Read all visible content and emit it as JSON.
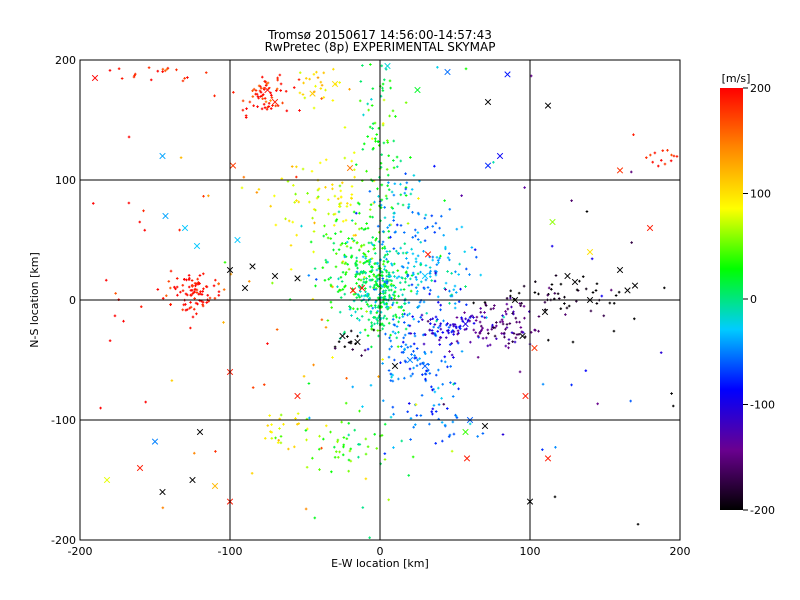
{
  "chart_data": {
    "type": "scatter",
    "title": "Tromsø 20150617 14:56:00-14:57:43",
    "subtitle": "RwPretec (8p) EXPERIMENTAL SKYMAP",
    "xlabel": "E-W location [km]",
    "ylabel": "N-S location [km]",
    "xlim": [
      -200,
      200
    ],
    "ylim": [
      -200,
      200
    ],
    "xticks": [
      "-200",
      "-100",
      "0",
      "100",
      "200"
    ],
    "yticks": [
      "-200",
      "-100",
      "0",
      "100",
      "200"
    ],
    "grid": true,
    "colorbar": {
      "unit": "[m/s]",
      "range": [
        -200,
        200
      ],
      "ticks": [
        "200",
        "100",
        "0",
        "-100",
        "-200"
      ],
      "colormap": [
        "#000000",
        "#6a0090",
        "#0000ff",
        "#00ccff",
        "#00ff00",
        "#ffff00",
        "#ff8800",
        "#ff0000"
      ]
    },
    "clusters": [
      {
        "cx": -125,
        "cy": 5,
        "sx": 9,
        "sy": 9,
        "n": 90,
        "v": 195
      },
      {
        "cx": -75,
        "cy": 170,
        "sx": 9,
        "sy": 10,
        "n": 65,
        "v": 190
      },
      {
        "cx": -150,
        "cy": 190,
        "sx": 14,
        "sy": 5,
        "n": 20,
        "v": 195
      },
      {
        "cx": 190,
        "cy": 120,
        "sx": 7,
        "sy": 6,
        "n": 18,
        "v": 195
      },
      {
        "cx": -40,
        "cy": 175,
        "sx": 10,
        "sy": 10,
        "n": 25,
        "v": 105
      },
      {
        "cx": -35,
        "cy": 85,
        "sx": 18,
        "sy": 20,
        "n": 80,
        "v": 85
      },
      {
        "cx": -15,
        "cy": 30,
        "sx": 14,
        "sy": 20,
        "n": 140,
        "v": 30
      },
      {
        "cx": 0,
        "cy": 130,
        "sx": 8,
        "sy": 40,
        "n": 90,
        "v": 20
      },
      {
        "cx": 0,
        "cy": 5,
        "sx": 10,
        "sy": 18,
        "n": 260,
        "v": 5
      },
      {
        "cx": 25,
        "cy": 25,
        "sx": 22,
        "sy": 15,
        "n": 130,
        "v": -30
      },
      {
        "cx": 15,
        "cy": 75,
        "sx": 20,
        "sy": 16,
        "n": 60,
        "v": -45
      },
      {
        "cx": 25,
        "cy": -40,
        "sx": 15,
        "sy": 30,
        "n": 140,
        "v": -55
      },
      {
        "cx": 45,
        "cy": -20,
        "sx": 12,
        "sy": 10,
        "n": 70,
        "v": -105
      },
      {
        "cx": 80,
        "cy": -20,
        "sx": 14,
        "sy": 12,
        "n": 90,
        "v": -145
      },
      {
        "cx": 125,
        "cy": 2,
        "sx": 22,
        "sy": 8,
        "n": 55,
        "v": -195
      },
      {
        "cx": -20,
        "cy": -35,
        "sx": 6,
        "sy": 6,
        "n": 15,
        "v": -200
      },
      {
        "cx": -65,
        "cy": -110,
        "sx": 10,
        "sy": 8,
        "n": 25,
        "v": 90
      },
      {
        "cx": -20,
        "cy": -120,
        "sx": 18,
        "sy": 12,
        "n": 45,
        "v": 40
      },
      {
        "cx": 30,
        "cy": -100,
        "sx": 16,
        "sy": 10,
        "n": 25,
        "v": -60
      },
      {
        "cx": 0,
        "cy": 0,
        "sx": 120,
        "sy": 110,
        "n": 160,
        "v": null
      }
    ],
    "crosses": [
      {
        "x": -190,
        "y": 185,
        "v": 200
      },
      {
        "x": -75,
        "y": 175,
        "v": 195
      },
      {
        "x": -70,
        "y": 165,
        "v": 190
      },
      {
        "x": -45,
        "y": 172,
        "v": 110
      },
      {
        "x": -30,
        "y": 180,
        "v": 100
      },
      {
        "x": 5,
        "y": 195,
        "v": -20
      },
      {
        "x": 25,
        "y": 175,
        "v": 20
      },
      {
        "x": 45,
        "y": 190,
        "v": -55
      },
      {
        "x": 72,
        "y": 165,
        "v": -200
      },
      {
        "x": 112,
        "y": 162,
        "v": -200
      },
      {
        "x": 85,
        "y": 188,
        "v": -80
      },
      {
        "x": 80,
        "y": 120,
        "v": -90
      },
      {
        "x": 72,
        "y": 112,
        "v": -75
      },
      {
        "x": -145,
        "y": 120,
        "v": -40
      },
      {
        "x": -98,
        "y": 112,
        "v": 175
      },
      {
        "x": -20,
        "y": 110,
        "v": 150
      },
      {
        "x": 180,
        "y": 60,
        "v": 190
      },
      {
        "x": 160,
        "y": 108,
        "v": 180
      },
      {
        "x": 140,
        "y": 40,
        "v": 100
      },
      {
        "x": 115,
        "y": 65,
        "v": 60
      },
      {
        "x": -143,
        "y": 70,
        "v": -40
      },
      {
        "x": -122,
        "y": 45,
        "v": -30
      },
      {
        "x": -95,
        "y": 50,
        "v": -30
      },
      {
        "x": -100,
        "y": 25,
        "v": -200
      },
      {
        "x": -85,
        "y": 28,
        "v": -200
      },
      {
        "x": -70,
        "y": 20,
        "v": -200
      },
      {
        "x": -55,
        "y": 18,
        "v": -200
      },
      {
        "x": -90,
        "y": 10,
        "v": -200
      },
      {
        "x": -100,
        "y": -60,
        "v": 190
      },
      {
        "x": -120,
        "y": -110,
        "v": -200
      },
      {
        "x": -145,
        "y": -160,
        "v": -200
      },
      {
        "x": -125,
        "y": -150,
        "v": -200
      },
      {
        "x": -110,
        "y": -155,
        "v": 120
      },
      {
        "x": -182,
        "y": -150,
        "v": 80
      },
      {
        "x": -160,
        "y": -140,
        "v": 190
      },
      {
        "x": -150,
        "y": -118,
        "v": -50
      },
      {
        "x": -100,
        "y": -168,
        "v": 190
      },
      {
        "x": -55,
        "y": -80,
        "v": 190
      },
      {
        "x": 10,
        "y": -55,
        "v": -200
      },
      {
        "x": 30,
        "y": -55,
        "v": -60
      },
      {
        "x": 60,
        "y": -100,
        "v": -60
      },
      {
        "x": 70,
        "y": -105,
        "v": -200
      },
      {
        "x": 58,
        "y": -132,
        "v": 190
      },
      {
        "x": 57,
        "y": -110,
        "v": 40
      },
      {
        "x": 100,
        "y": -168,
        "v": -200
      },
      {
        "x": 112,
        "y": -132,
        "v": 190
      },
      {
        "x": 97,
        "y": -80,
        "v": 190
      },
      {
        "x": 103,
        "y": -40,
        "v": 180
      },
      {
        "x": 95,
        "y": -30,
        "v": -200
      },
      {
        "x": 110,
        "y": -10,
        "v": -200
      },
      {
        "x": 130,
        "y": 15,
        "v": -200
      },
      {
        "x": 140,
        "y": 0,
        "v": -200
      },
      {
        "x": 160,
        "y": 25,
        "v": -200
      },
      {
        "x": 165,
        "y": 8,
        "v": -200
      },
      {
        "x": 170,
        "y": 12,
        "v": -200
      },
      {
        "x": 125,
        "y": 20,
        "v": -200
      },
      {
        "x": -18,
        "y": 8,
        "v": 195
      },
      {
        "x": -12,
        "y": 10,
        "v": 195
      },
      {
        "x": 32,
        "y": 38,
        "v": 190
      },
      {
        "x": 30,
        "y": 20,
        "v": -30
      },
      {
        "x": -25,
        "y": -30,
        "v": -200
      },
      {
        "x": -15,
        "y": -35,
        "v": -200
      },
      {
        "x": 20,
        "y": -50,
        "v": -50
      },
      {
        "x": 90,
        "y": 0,
        "v": -200
      },
      {
        "x": 57,
        "y": -20,
        "v": -100
      },
      {
        "x": -130,
        "y": 60,
        "v": -30
      }
    ]
  }
}
